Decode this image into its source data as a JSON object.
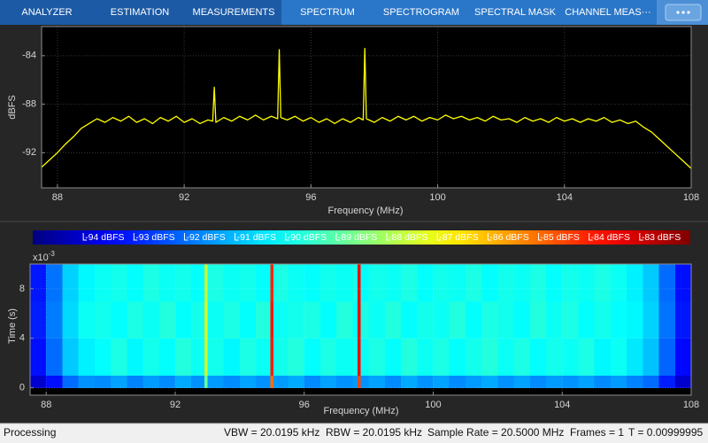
{
  "toolbar": {
    "tabs": [
      "ANALYZER",
      "ESTIMATION",
      "MEASUREMENTS",
      "SPECTRUM",
      "SPECTROGRAM",
      "SPECTRAL MASK",
      "CHANNEL MEAS···"
    ]
  },
  "status_bar": {
    "state": "Processing",
    "items": [
      "VBW = 20.0195 kHz",
      "RBW = 20.0195 kHz",
      "Sample Rate = 20.5000 MHz",
      "Frames = 1",
      "T = 0.00999995"
    ]
  },
  "chart_data": [
    {
      "type": "line",
      "xlabel": "Frequency (MHz)",
      "ylabel": "dBFS",
      "x": [
        87.5,
        87.75,
        88,
        88.25,
        88.5,
        88.75,
        89,
        89.25,
        89.5,
        89.75,
        90,
        90.25,
        90.5,
        90.75,
        91,
        91.25,
        91.5,
        91.75,
        92,
        92.25,
        92.5,
        92.75,
        92.9,
        92.95,
        93,
        93.25,
        93.5,
        93.75,
        94,
        94.25,
        94.5,
        94.75,
        94.95,
        95,
        95.05,
        95.25,
        95.5,
        95.75,
        96,
        96.25,
        96.5,
        96.75,
        97,
        97.25,
        97.5,
        97.65,
        97.7,
        97.75,
        98,
        98.25,
        98.5,
        98.75,
        99,
        99.25,
        99.5,
        99.75,
        100,
        100.25,
        100.5,
        100.75,
        101,
        101.25,
        101.5,
        101.75,
        102,
        102.25,
        102.5,
        102.75,
        103,
        103.25,
        103.5,
        103.75,
        104,
        104.25,
        104.5,
        104.75,
        105,
        105.25,
        105.5,
        105.75,
        106,
        106.25,
        106.5,
        106.75,
        107,
        107.25,
        107.5,
        107.75,
        108
      ],
      "series": [
        {
          "color": "#ffff00",
          "values": [
            -93.2,
            -92.6,
            -92.0,
            -91.3,
            -90.7,
            -90.0,
            -89.6,
            -89.2,
            -89.5,
            -89.1,
            -89.4,
            -89.0,
            -89.5,
            -89.2,
            -89.6,
            -89.1,
            -89.4,
            -89.0,
            -89.5,
            -89.2,
            -89.6,
            -89.3,
            -89.4,
            -86.6,
            -89.5,
            -89.1,
            -89.4,
            -89.0,
            -89.3,
            -88.9,
            -89.3,
            -89.0,
            -89.2,
            -83.5,
            -89.1,
            -89.3,
            -89.0,
            -89.4,
            -89.1,
            -89.5,
            -89.2,
            -89.6,
            -89.2,
            -89.5,
            -89.1,
            -89.3,
            -83.4,
            -89.2,
            -89.5,
            -89.1,
            -89.4,
            -89.0,
            -89.3,
            -89.0,
            -89.4,
            -89.1,
            -89.3,
            -88.9,
            -89.2,
            -89.0,
            -89.3,
            -89.1,
            -89.4,
            -89.0,
            -89.3,
            -89.2,
            -89.5,
            -89.1,
            -89.4,
            -89.2,
            -89.5,
            -89.1,
            -89.4,
            -89.2,
            -89.5,
            -89.2,
            -89.4,
            -89.1,
            -89.5,
            -89.3,
            -89.6,
            -89.4,
            -89.9,
            -90.3,
            -90.9,
            -91.5,
            -92.1,
            -92.7,
            -93.3
          ]
        }
      ],
      "xlim": [
        87.5,
        108
      ],
      "ylim": [
        -94.9,
        -81.6
      ],
      "xticks": [
        88,
        92,
        96,
        100,
        104,
        108
      ],
      "yticks": [
        -84,
        -88,
        -92
      ],
      "grid": true
    },
    {
      "type": "heatmap",
      "xlabel": "Frequency (MHz)",
      "ylabel": "Time (s)",
      "y_exponent_label": "x10",
      "y_exponent": -3,
      "colormap": "jet",
      "x_edges": [
        87.5,
        88,
        88.5,
        89,
        89.5,
        90,
        90.5,
        91,
        91.5,
        92,
        92.5,
        92.9,
        93,
        93.5,
        94,
        94.5,
        94.95,
        95.05,
        95.5,
        96,
        96.5,
        97,
        97.5,
        97.65,
        97.75,
        98,
        98.5,
        99,
        99.5,
        100,
        100.5,
        101,
        101.5,
        102,
        102.5,
        103,
        103.5,
        104,
        104.5,
        105,
        105.5,
        106,
        106.5,
        107,
        107.5,
        108
      ],
      "y_edges": [
        0,
        1,
        4,
        7,
        10
      ],
      "z": [
        [
          -94.0,
          -93.2,
          -92.0,
          -91.5,
          -91.6,
          -91.3,
          -91.7,
          -91.4,
          -91.6,
          -91.2,
          -91.5,
          -88.8,
          -91.4,
          -91.6,
          -91.3,
          -91.5,
          -85.0,
          -91.4,
          -91.2,
          -91.6,
          -91.3,
          -91.5,
          -91.4,
          -84.5,
          -91.5,
          -91.3,
          -91.6,
          -91.2,
          -91.5,
          -91.3,
          -91.6,
          -91.4,
          -91.2,
          -91.5,
          -91.3,
          -91.6,
          -91.4,
          -91.5,
          -91.3,
          -91.6,
          -91.4,
          -91.7,
          -92.0,
          -93.0,
          -94.0
        ],
        [
          -93.2,
          -92.0,
          -90.8,
          -90.3,
          -90.1,
          -89.8,
          -90.2,
          -89.9,
          -90.1,
          -89.7,
          -90.0,
          -87.5,
          -89.9,
          -90.2,
          -89.8,
          -90.0,
          -84.0,
          -89.9,
          -89.7,
          -90.1,
          -89.8,
          -90.0,
          -89.9,
          -83.6,
          -90.0,
          -89.8,
          -90.1,
          -89.7,
          -90.0,
          -89.8,
          -90.1,
          -89.9,
          -89.7,
          -90.0,
          -89.8,
          -90.1,
          -89.9,
          -90.0,
          -89.8,
          -90.2,
          -90.0,
          -90.4,
          -90.9,
          -92.1,
          -93.3
        ],
        [
          -93.0,
          -91.8,
          -90.6,
          -90.0,
          -89.9,
          -90.1,
          -89.8,
          -90.0,
          -89.7,
          -90.1,
          -89.9,
          -87.4,
          -90.0,
          -89.8,
          -90.1,
          -89.7,
          -83.9,
          -90.0,
          -89.9,
          -89.8,
          -90.1,
          -89.7,
          -90.0,
          -83.5,
          -89.8,
          -90.0,
          -89.7,
          -90.1,
          -89.9,
          -90.0,
          -89.7,
          -90.1,
          -89.8,
          -89.9,
          -90.1,
          -89.7,
          -90.0,
          -89.8,
          -90.1,
          -89.9,
          -90.1,
          -90.2,
          -90.7,
          -91.9,
          -93.1
        ],
        [
          -93.1,
          -91.9,
          -90.7,
          -90.2,
          -90.0,
          -89.9,
          -90.1,
          -89.8,
          -90.0,
          -89.9,
          -90.1,
          -87.6,
          -89.8,
          -90.0,
          -89.9,
          -90.1,
          -84.1,
          -89.8,
          -90.0,
          -90.1,
          -89.9,
          -90.0,
          -89.8,
          -83.7,
          -90.1,
          -89.9,
          -90.0,
          -89.8,
          -90.1,
          -89.9,
          -90.0,
          -89.8,
          -90.1,
          -89.9,
          -90.0,
          -89.8,
          -90.1,
          -89.9,
          -90.0,
          -89.8,
          -90.0,
          -90.3,
          -90.8,
          -92.0,
          -93.2
        ]
      ],
      "clim": [
        -95,
        -82
      ],
      "cticks": [
        {
          "value": -94,
          "label": "-94 dBFS"
        },
        {
          "value": -93,
          "label": "-93 dBFS"
        },
        {
          "value": -92,
          "label": "-92 dBFS"
        },
        {
          "value": -91,
          "label": "-91 dBFS"
        },
        {
          "value": -90,
          "label": "-90 dBFS"
        },
        {
          "value": -89,
          "label": "-89 dBFS"
        },
        {
          "value": -88,
          "label": "-88 dBFS"
        },
        {
          "value": -87,
          "label": "-87 dBFS"
        },
        {
          "value": -86,
          "label": "-86 dBFS"
        },
        {
          "value": -85,
          "label": "-85 dBFS"
        },
        {
          "value": -84,
          "label": "-84 dBFS"
        },
        {
          "value": -83,
          "label": "-83 dBFS"
        }
      ],
      "xlim": [
        87.5,
        108
      ],
      "ylim": [
        -0.6,
        10
      ],
      "xticks": [
        88,
        92,
        96,
        100,
        104,
        108
      ],
      "yticks": [
        0,
        4,
        8
      ],
      "grid": true
    }
  ]
}
